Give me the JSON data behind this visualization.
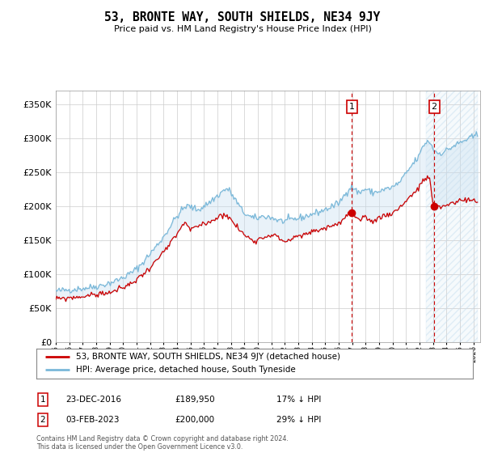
{
  "title": "53, BRONTE WAY, SOUTH SHIELDS, NE34 9JY",
  "subtitle": "Price paid vs. HM Land Registry's House Price Index (HPI)",
  "ylim": [
    0,
    370000
  ],
  "xlim_start": 1995.0,
  "xlim_end": 2026.5,
  "hpi_color": "#7ab8d9",
  "price_color": "#cc0000",
  "vline_color": "#cc0000",
  "shade_color": "#c8dff0",
  "marker1_date": 2016.98,
  "marker2_date": 2023.09,
  "marker1_price": 189950,
  "marker2_price": 200000,
  "marker1_label": "23-DEC-2016",
  "marker2_label": "03-FEB-2023",
  "marker1_hpi_pct": "17% ↓ HPI",
  "marker2_hpi_pct": "29% ↓ HPI",
  "legend_house_label": "53, BRONTE WAY, SOUTH SHIELDS, NE34 9JY (detached house)",
  "legend_hpi_label": "HPI: Average price, detached house, South Tyneside",
  "footer": "Contains HM Land Registry data © Crown copyright and database right 2024.\nThis data is licensed under the Open Government Licence v3.0.",
  "hpi_key_points": [
    [
      1995.0,
      75000
    ],
    [
      1996.0,
      77000
    ],
    [
      1997.0,
      79000
    ],
    [
      1998.0,
      82000
    ],
    [
      1999.0,
      87000
    ],
    [
      2000.0,
      95000
    ],
    [
      2001.0,
      108000
    ],
    [
      2002.0,
      130000
    ],
    [
      2003.0,
      155000
    ],
    [
      2004.0,
      185000
    ],
    [
      2004.8,
      200000
    ],
    [
      2005.5,
      195000
    ],
    [
      2006.0,
      200000
    ],
    [
      2007.0,
      215000
    ],
    [
      2007.7,
      225000
    ],
    [
      2008.3,
      210000
    ],
    [
      2009.0,
      190000
    ],
    [
      2009.8,
      182000
    ],
    [
      2010.5,
      185000
    ],
    [
      2011.0,
      183000
    ],
    [
      2011.8,
      178000
    ],
    [
      2012.5,
      180000
    ],
    [
      2013.0,
      182000
    ],
    [
      2014.0,
      188000
    ],
    [
      2015.0,
      195000
    ],
    [
      2016.0,
      205000
    ],
    [
      2016.98,
      228000
    ],
    [
      2017.5,
      220000
    ],
    [
      2018.0,
      225000
    ],
    [
      2018.5,
      220000
    ],
    [
      2019.0,
      222000
    ],
    [
      2019.5,
      225000
    ],
    [
      2020.0,
      228000
    ],
    [
      2020.5,
      235000
    ],
    [
      2021.0,
      248000
    ],
    [
      2021.5,
      262000
    ],
    [
      2022.0,
      275000
    ],
    [
      2022.3,
      290000
    ],
    [
      2022.7,
      295000
    ],
    [
      2023.0,
      285000
    ],
    [
      2023.09,
      282000
    ],
    [
      2023.5,
      278000
    ],
    [
      2024.0,
      282000
    ],
    [
      2024.5,
      288000
    ],
    [
      2025.0,
      293000
    ],
    [
      2025.5,
      298000
    ],
    [
      2026.0,
      302000
    ],
    [
      2026.3,
      305000
    ]
  ],
  "price_key_points": [
    [
      1995.0,
      63000
    ],
    [
      1996.0,
      65000
    ],
    [
      1997.0,
      67000
    ],
    [
      1998.0,
      70000
    ],
    [
      1999.0,
      73000
    ],
    [
      2000.0,
      80000
    ],
    [
      2001.0,
      92000
    ],
    [
      2002.0,
      110000
    ],
    [
      2003.0,
      132000
    ],
    [
      2004.0,
      158000
    ],
    [
      2004.6,
      175000
    ],
    [
      2005.0,
      165000
    ],
    [
      2005.5,
      170000
    ],
    [
      2006.5,
      178000
    ],
    [
      2007.0,
      183000
    ],
    [
      2007.5,
      188000
    ],
    [
      2008.2,
      175000
    ],
    [
      2009.0,
      158000
    ],
    [
      2009.8,
      150000
    ],
    [
      2010.5,
      155000
    ],
    [
      2011.0,
      158000
    ],
    [
      2011.8,
      150000
    ],
    [
      2012.0,
      148000
    ],
    [
      2012.5,
      152000
    ],
    [
      2013.0,
      155000
    ],
    [
      2013.5,
      158000
    ],
    [
      2014.0,
      162000
    ],
    [
      2015.0,
      168000
    ],
    [
      2016.0,
      175000
    ],
    [
      2016.98,
      189950
    ],
    [
      2017.5,
      178000
    ],
    [
      2018.0,
      182000
    ],
    [
      2018.5,
      178000
    ],
    [
      2019.0,
      183000
    ],
    [
      2019.5,
      187000
    ],
    [
      2020.0,
      190000
    ],
    [
      2020.5,
      198000
    ],
    [
      2021.0,
      208000
    ],
    [
      2021.5,
      218000
    ],
    [
      2022.0,
      228000
    ],
    [
      2022.3,
      238000
    ],
    [
      2022.7,
      242000
    ],
    [
      2023.0,
      205000
    ],
    [
      2023.09,
      200000
    ],
    [
      2023.5,
      198000
    ],
    [
      2024.0,
      202000
    ],
    [
      2024.5,
      205000
    ],
    [
      2025.0,
      208000
    ],
    [
      2025.5,
      210000
    ],
    [
      2026.0,
      208000
    ],
    [
      2026.3,
      207000
    ]
  ]
}
